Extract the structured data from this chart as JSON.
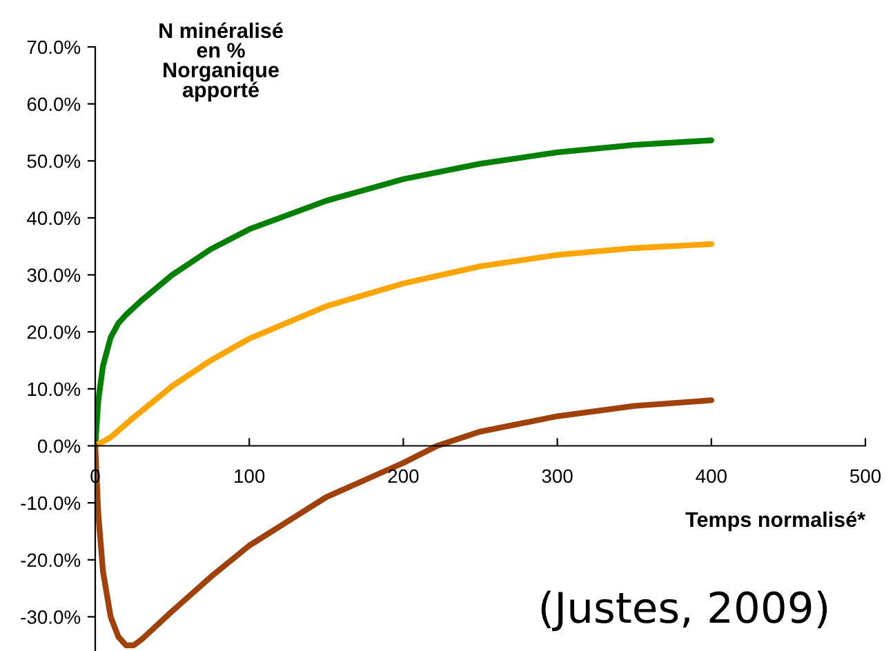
{
  "chart_data": {
    "type": "line",
    "ylabel": "N minéralisé\nen %\nNorganique\napporté",
    "xlabel": "Temps normalisé*",
    "annotations": [
      "(Justes, 2009)"
    ],
    "xlim": [
      0,
      500
    ],
    "xticks": [
      0,
      100,
      200,
      300,
      400,
      500
    ],
    "ylim": [
      -36,
      70
    ],
    "yticks": [
      {
        "value": -30,
        "label": "-30.0%"
      },
      {
        "value": -20,
        "label": "-20.0%"
      },
      {
        "value": -10,
        "label": "-10.0%"
      },
      {
        "value": 0,
        "label": "0.0%"
      },
      {
        "value": 10,
        "label": "10.0%"
      },
      {
        "value": 20,
        "label": "20.0%"
      },
      {
        "value": 30,
        "label": "30.0%"
      },
      {
        "value": 40,
        "label": "40.0%"
      },
      {
        "value": 50,
        "label": "50.0%"
      },
      {
        "value": 60,
        "label": "60.0%"
      },
      {
        "value": 70,
        "label": "70.0%"
      }
    ],
    "grid": false,
    "legend": false,
    "marker": "none",
    "line_style": "solid",
    "series": [
      {
        "color": "#008000",
        "x": [
          0,
          2,
          5,
          10,
          15,
          20,
          30,
          50,
          75,
          100,
          150,
          200,
          250,
          300,
          350,
          400
        ],
        "values": [
          0,
          8,
          14,
          19,
          21.5,
          23,
          25.5,
          30,
          34.5,
          38,
          43,
          46.8,
          49.5,
          51.5,
          52.8,
          53.6
        ]
      },
      {
        "color": "#ffa500",
        "x": [
          0,
          10,
          25,
          50,
          75,
          100,
          150,
          200,
          250,
          300,
          350,
          400
        ],
        "values": [
          0,
          1.5,
          5,
          10.5,
          15,
          18.8,
          24.5,
          28.5,
          31.5,
          33.5,
          34.7,
          35.4
        ]
      },
      {
        "color": "#a0400a",
        "x": [
          0,
          2,
          5,
          10,
          15,
          20,
          25,
          30,
          50,
          75,
          100,
          150,
          200,
          222,
          250,
          300,
          350,
          400
        ],
        "values": [
          0,
          -12,
          -22,
          -30,
          -33.5,
          -35,
          -35,
          -34,
          -29,
          -23,
          -17.5,
          -9,
          -3,
          0,
          2.5,
          5.2,
          7,
          8
        ]
      }
    ]
  }
}
